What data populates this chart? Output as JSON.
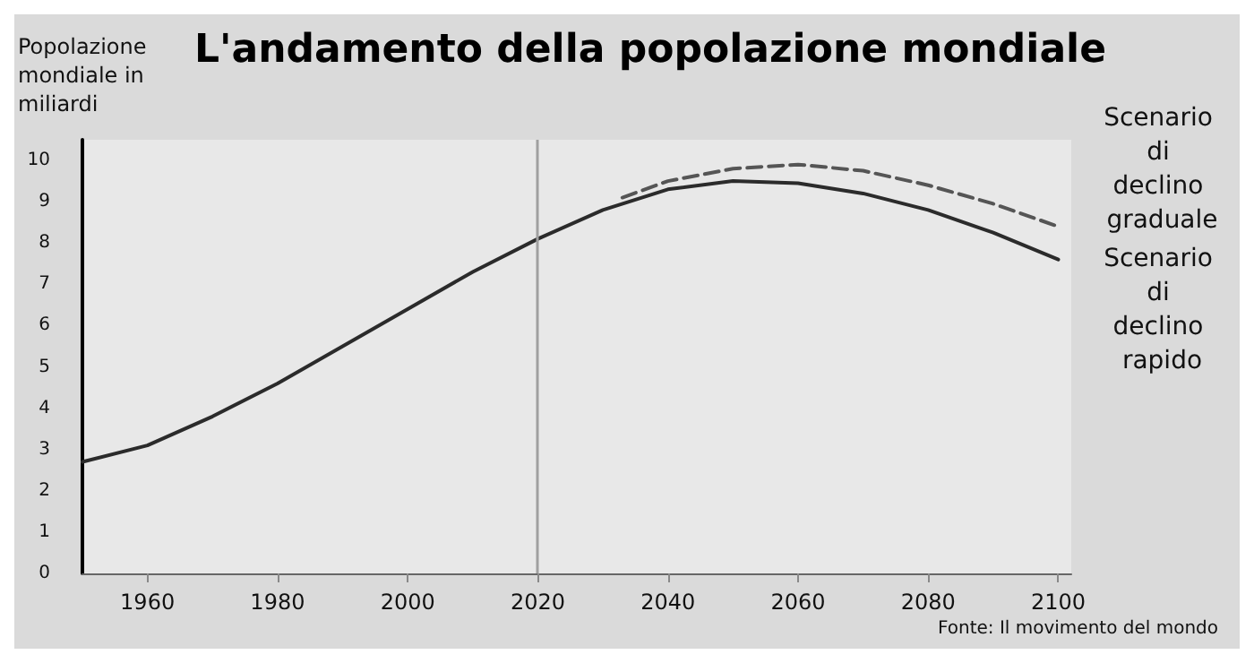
{
  "chart_data": {
    "type": "line",
    "title": "L'andamento della popolazione mondiale",
    "ylabel": "Popolazione mondiale in miliardi",
    "series": [
      {
        "name": "Scenario di declino graduale",
        "color": "#555555",
        "line_style": "dashed",
        "x": [
          2033,
          2040,
          2050,
          2060,
          2070,
          2080,
          2090,
          2100
        ],
        "values": [
          9.1,
          9.5,
          9.8,
          9.9,
          9.75,
          9.4,
          8.95,
          8.4
        ]
      },
      {
        "name": "Scenario di declino rapido",
        "color": "#2b2b2b",
        "line_style": "solid",
        "x": [
          1950,
          1960,
          1970,
          1980,
          1990,
          2000,
          2010,
          2020,
          2030,
          2040,
          2050,
          2060,
          2070,
          2080,
          2090,
          2100
        ],
        "values": [
          2.7,
          3.1,
          3.8,
          4.6,
          5.5,
          6.4,
          7.3,
          8.1,
          8.8,
          9.3,
          9.5,
          9.45,
          9.2,
          8.8,
          8.25,
          7.6
        ]
      }
    ],
    "xlim": [
      1950,
      2102
    ],
    "xticks": [
      1960,
      1980,
      2000,
      2020,
      2040,
      2060,
      2080,
      2100
    ],
    "ylim": [
      0,
      10.5
    ],
    "yticks": [
      0,
      1,
      2,
      3,
      4,
      5,
      6,
      7,
      8,
      9,
      10
    ],
    "ref_lines": [
      {
        "axis": "x",
        "value": 2020,
        "color": "#a0a0a0"
      }
    ],
    "annotations": [
      "Fonte: Il movimento del mondo"
    ],
    "grid": false,
    "legend": false,
    "marker": "none"
  }
}
